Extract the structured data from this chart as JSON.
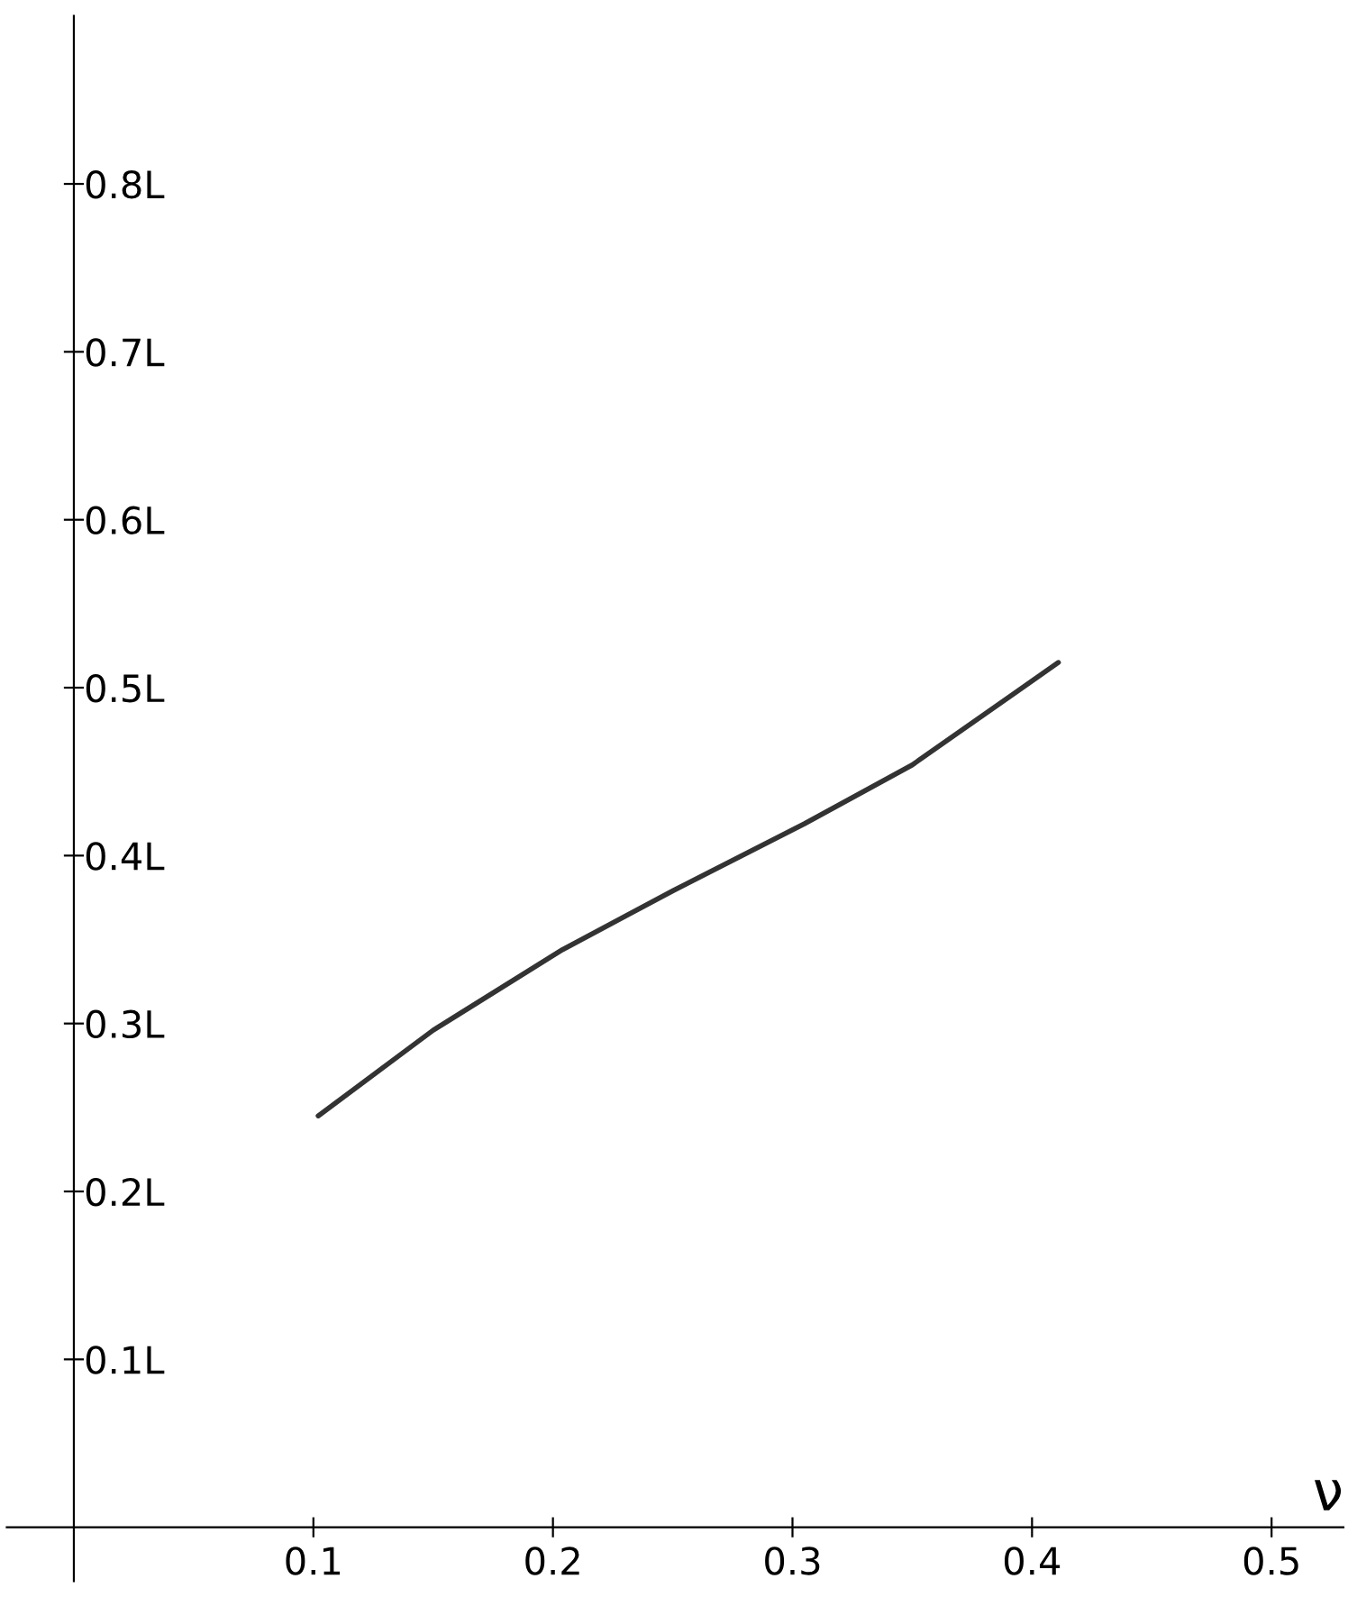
{
  "chart_data": {
    "type": "line",
    "xlabel": "ν",
    "x": [
      0.102,
      0.15,
      0.204,
      0.25,
      0.305,
      0.35,
      0.411
    ],
    "series": [
      {
        "color": "#333333",
        "values": [
          0.245,
          0.296,
          0.344,
          0.379,
          0.419,
          0.454,
          0.515
        ]
      }
    ],
    "xlim": [
      -0.028,
      0.53
    ],
    "ylim": [
      -0.032,
      0.9
    ],
    "xticks": [
      0.1,
      0.2,
      0.3,
      0.4,
      0.5
    ],
    "yticks": [
      {
        "value": 0.1,
        "label": "0.1L"
      },
      {
        "value": 0.2,
        "label": "0.2L"
      },
      {
        "value": 0.3,
        "label": "0.3L"
      },
      {
        "value": 0.4,
        "label": "0.4L"
      },
      {
        "value": 0.5,
        "label": "0.5L"
      },
      {
        "value": 0.6,
        "label": "0.6L"
      },
      {
        "value": 0.7,
        "label": "0.7L"
      },
      {
        "value": 0.8,
        "label": "0.8L"
      }
    ],
    "grid": false,
    "legend": false,
    "line_style": "solid"
  }
}
